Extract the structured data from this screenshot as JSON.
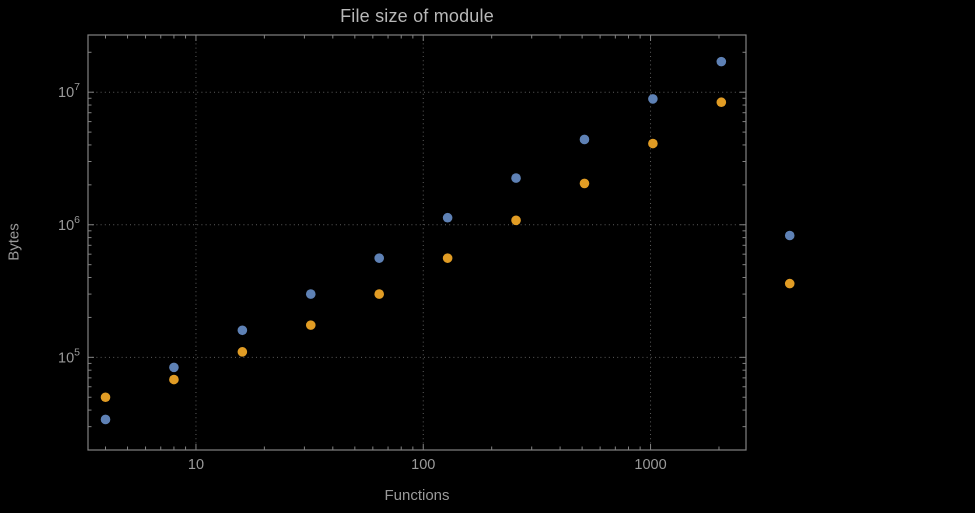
{
  "style": {
    "background": "#000000",
    "frame_color": "#828282",
    "grid_color": "#5c5c5c",
    "text_color": "#9a9a9a",
    "title_color": "#b8b8b8"
  },
  "chart_data": {
    "type": "scatter",
    "title": "File size of module",
    "xlabel": "Functions",
    "ylabel": "Bytes",
    "x_scale": "log",
    "y_scale": "log",
    "xlim": [
      3.35,
      2630
    ],
    "ylim": [
      20000,
      27000000
    ],
    "grid": "dotted major gridlines on both axes",
    "legend": "none",
    "plot_range_clipping": false,
    "x": [
      4,
      8,
      16,
      32,
      64,
      128,
      256,
      512,
      1024,
      2048,
      4096
    ],
    "series": [
      {
        "name": "blue",
        "color": "#5e81b5",
        "values": [
          34000,
          84000,
          160000,
          300000,
          560000,
          1130000,
          2250000,
          4400000,
          8900000,
          17000000,
          830000
        ]
      },
      {
        "name": "orange",
        "color": "#e19c24",
        "values": [
          50000,
          68000,
          110000,
          175000,
          300000,
          560000,
          1080000,
          2050000,
          4100000,
          8400000,
          360000
        ]
      }
    ],
    "x_ticks": [
      10,
      100,
      1000
    ],
    "x_tick_labels": [
      "10",
      "100",
      "1000"
    ],
    "y_ticks": [
      100000,
      1000000,
      10000000
    ],
    "y_tick_labels": [
      {
        "base": "10",
        "exponent": "5"
      },
      {
        "base": "10",
        "exponent": "6"
      },
      {
        "base": "10",
        "exponent": "7"
      }
    ]
  }
}
